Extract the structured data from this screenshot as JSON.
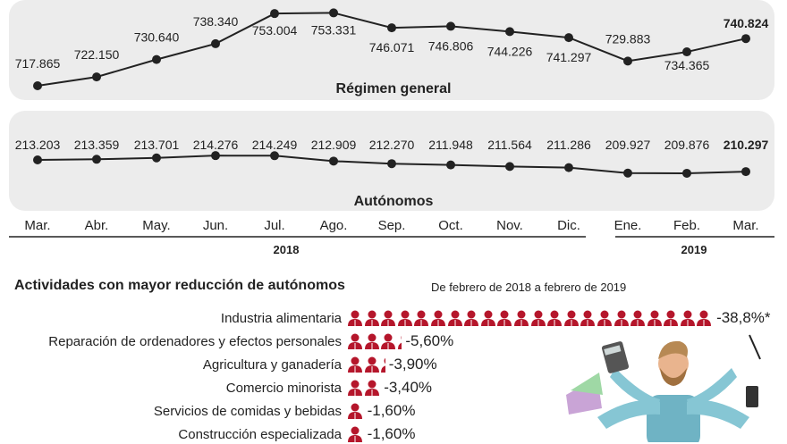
{
  "chart_data": [
    {
      "type": "line",
      "title": "Régimen general",
      "categories": [
        "Mar.",
        "Abr.",
        "May.",
        "Jun.",
        "Jul.",
        "Ago.",
        "Sep.",
        "Oct.",
        "Nov.",
        "Dic.",
        "Ene.",
        "Feb.",
        "Mar."
      ],
      "values": [
        717865,
        722150,
        730640,
        738340,
        753004,
        753331,
        746071,
        746806,
        744226,
        741297,
        729883,
        734365,
        740824
      ],
      "labels": [
        "717.865",
        "722.150",
        "730.640",
        "738.340",
        "753.004",
        "753.331",
        "746.071",
        "746.806",
        "744.226",
        "741.297",
        "729.883",
        "734.365",
        "740.824"
      ]
    },
    {
      "type": "line",
      "title": "Autónomos",
      "categories": [
        "Mar.",
        "Abr.",
        "May.",
        "Jun.",
        "Jul.",
        "Ago.",
        "Sep.",
        "Oct.",
        "Nov.",
        "Dic.",
        "Ene.",
        "Feb.",
        "Mar."
      ],
      "values": [
        213203,
        213359,
        213701,
        214276,
        214249,
        212909,
        212270,
        211948,
        211564,
        211286,
        209927,
        209876,
        210297
      ],
      "labels": [
        "213.203",
        "213.359",
        "213.701",
        "214.276",
        "214.249",
        "212.909",
        "212.270",
        "211.948",
        "211.564",
        "211.286",
        "209.927",
        "209.876",
        "210.297"
      ]
    },
    {
      "type": "bar",
      "title": "Actividades con mayor reducción de autónomos",
      "subtitle": "De febrero de 2018 a febrero de 2019",
      "categories": [
        "Industria alimentaria",
        "Reparación de ordenadores y efectos personales",
        "Agricultura y ganadería",
        "Comercio minorista",
        "Servicios de comidas y bebidas",
        "Construcción especializada"
      ],
      "values": [
        -38.8,
        -5.6,
        -3.9,
        -3.4,
        -1.6,
        -1.6
      ],
      "labels": [
        "-38,8%*",
        "-5,60%",
        "-3,90%",
        "-3,40%",
        "-1,60%",
        "-1,60%"
      ],
      "icons": [
        22,
        3.3,
        2.3,
        2,
        1,
        1
      ]
    }
  ],
  "months": [
    "Mar.",
    "Abr.",
    "May.",
    "Jun.",
    "Jul.",
    "Ago.",
    "Sep.",
    "Oct.",
    "Nov.",
    "Dic.",
    "Ene.",
    "Feb.",
    "Mar."
  ],
  "years": [
    "2018",
    "2019"
  ],
  "colors": {
    "panel": "#ececec",
    "line": "#222222",
    "icon": "#b5162b"
  }
}
